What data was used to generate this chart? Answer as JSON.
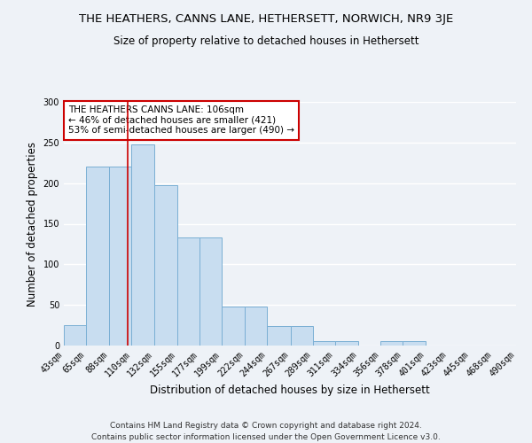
{
  "title": "THE HEATHERS, CANNS LANE, HETHERSETT, NORWICH, NR9 3JE",
  "subtitle": "Size of property relative to detached houses in Hethersett",
  "xlabel": "Distribution of detached houses by size in Hethersett",
  "ylabel": "Number of detached properties",
  "bar_color": "#c8ddf0",
  "bar_edge_color": "#7aafd4",
  "bin_labels": [
    "43sqm",
    "65sqm",
    "88sqm",
    "110sqm",
    "132sqm",
    "155sqm",
    "177sqm",
    "199sqm",
    "222sqm",
    "244sqm",
    "267sqm",
    "289sqm",
    "311sqm",
    "334sqm",
    "356sqm",
    "378sqm",
    "401sqm",
    "423sqm",
    "445sqm",
    "468sqm",
    "490sqm"
  ],
  "bar_heights": [
    25,
    220,
    220,
    248,
    197,
    133,
    133,
    48,
    48,
    24,
    24,
    5,
    5,
    0,
    5,
    5,
    0,
    0,
    0,
    0,
    3
  ],
  "bin_edges": [
    43,
    65,
    88,
    110,
    132,
    155,
    177,
    199,
    222,
    244,
    267,
    289,
    311,
    334,
    356,
    378,
    401,
    423,
    445,
    468,
    490
  ],
  "vline_x": 106,
  "vline_color": "#cc0000",
  "ylim": [
    0,
    300
  ],
  "yticks": [
    0,
    50,
    100,
    150,
    200,
    250,
    300
  ],
  "annotation_title": "THE HEATHERS CANNS LANE: 106sqm",
  "annotation_line1": "← 46% of detached houses are smaller (421)",
  "annotation_line2": "53% of semi-detached houses are larger (490) →",
  "annotation_box_color": "#ffffff",
  "annotation_box_edge": "#cc0000",
  "footer_line1": "Contains HM Land Registry data © Crown copyright and database right 2024.",
  "footer_line2": "Contains public sector information licensed under the Open Government Licence v3.0.",
  "background_color": "#eef2f7",
  "grid_color": "#ffffff",
  "title_fontsize": 9.5,
  "subtitle_fontsize": 8.5,
  "axis_label_fontsize": 8.5,
  "tick_fontsize": 7,
  "annotation_fontsize": 7.5,
  "footer_fontsize": 6.5
}
